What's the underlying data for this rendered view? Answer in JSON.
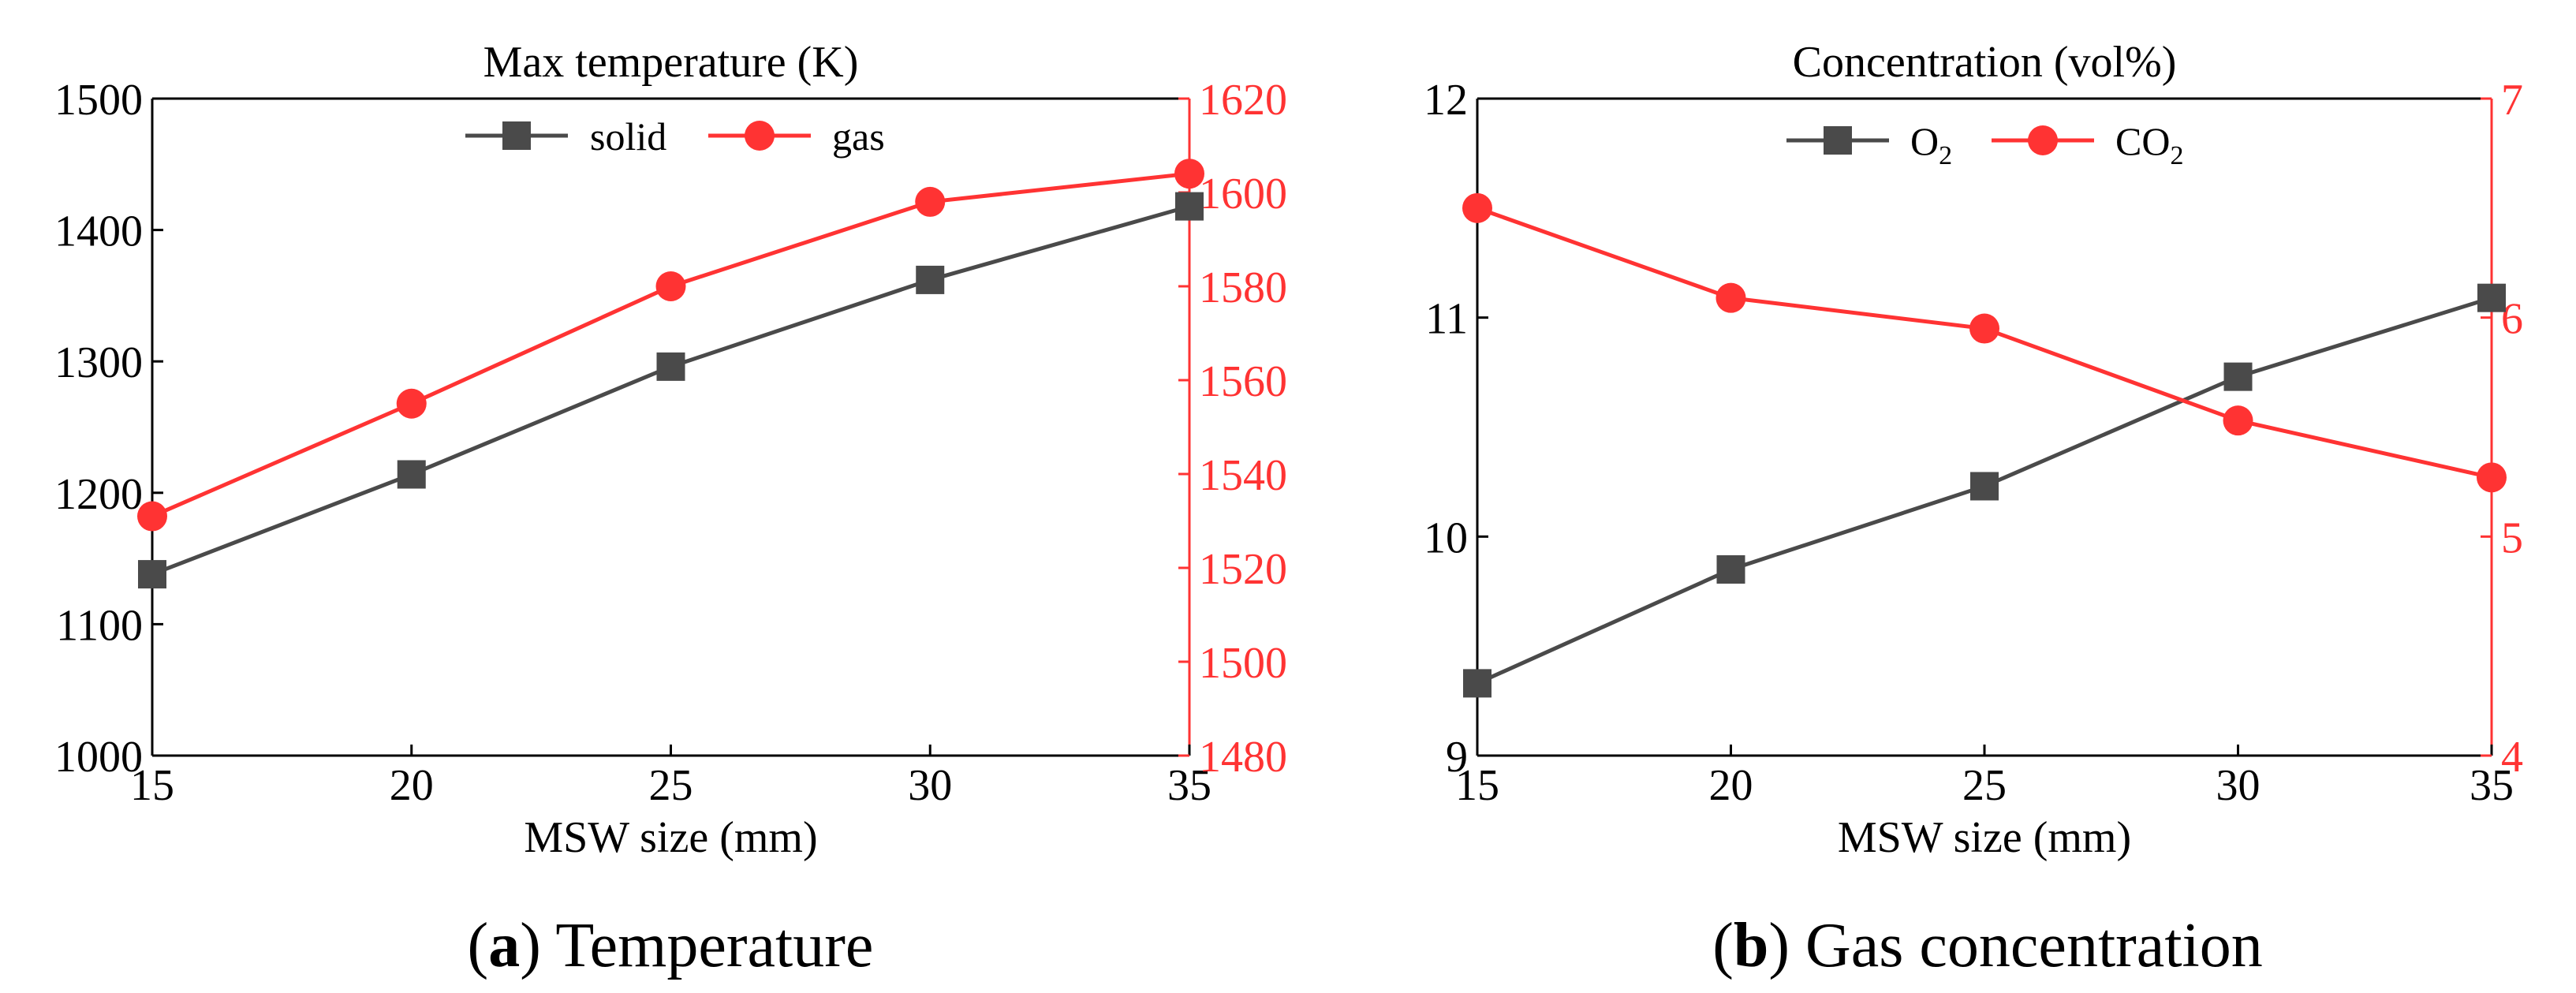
{
  "chart_data": [
    {
      "type": "line",
      "panel": "a",
      "title": "Max temperature (K)",
      "xlabel": "MSW size (mm)",
      "x": [
        15,
        20,
        25,
        30,
        35
      ],
      "xlim": [
        15,
        35
      ],
      "xticks": [
        "15",
        "20",
        "25",
        "30",
        "35"
      ],
      "ylim_left": [
        1000,
        1500
      ],
      "yticks_left": [
        "1000",
        "1100",
        "1200",
        "1300",
        "1400",
        "1500"
      ],
      "ylim_right": [
        1480,
        1620
      ],
      "yticks_right": [
        "1480",
        "1500",
        "1520",
        "1540",
        "1560",
        "1580",
        "1600",
        "1620"
      ],
      "series": [
        {
          "name": "solid",
          "axis": "left",
          "marker": "square",
          "color": "#4a4a4a",
          "values": [
            1138,
            1214,
            1296,
            1362,
            1418
          ]
        },
        {
          "name": "gas",
          "axis": "right",
          "marker": "circle",
          "color": "#ff3333",
          "values": [
            1531,
            1555,
            1580,
            1598,
            1604
          ]
        }
      ],
      "legend_position": "top-center",
      "caption_label": "a",
      "caption_text": " Temperature"
    },
    {
      "type": "line",
      "panel": "b",
      "title": "Concentration (vol%)",
      "xlabel": "MSW size (mm)",
      "x": [
        15,
        20,
        25,
        30,
        35
      ],
      "xlim": [
        15,
        35
      ],
      "xticks": [
        "15",
        "20",
        "25",
        "30",
        "35"
      ],
      "ylim_left": [
        9,
        12
      ],
      "yticks_left": [
        "9",
        "10",
        "11",
        "12"
      ],
      "ylim_right": [
        4,
        7
      ],
      "yticks_right": [
        "4",
        "5",
        "6",
        "7"
      ],
      "series": [
        {
          "name": "O",
          "subscript": "2",
          "axis": "left",
          "marker": "square",
          "color": "#4a4a4a",
          "values": [
            9.33,
            9.85,
            10.23,
            10.73,
            11.09
          ]
        },
        {
          "name": "CO",
          "subscript": "2",
          "axis": "right",
          "marker": "circle",
          "color": "#ff3333",
          "values": [
            6.5,
            6.09,
            5.95,
            5.53,
            5.27
          ]
        }
      ],
      "legend_position": "top-center",
      "caption_label": "b",
      "caption_text": " Gas concentration"
    }
  ]
}
